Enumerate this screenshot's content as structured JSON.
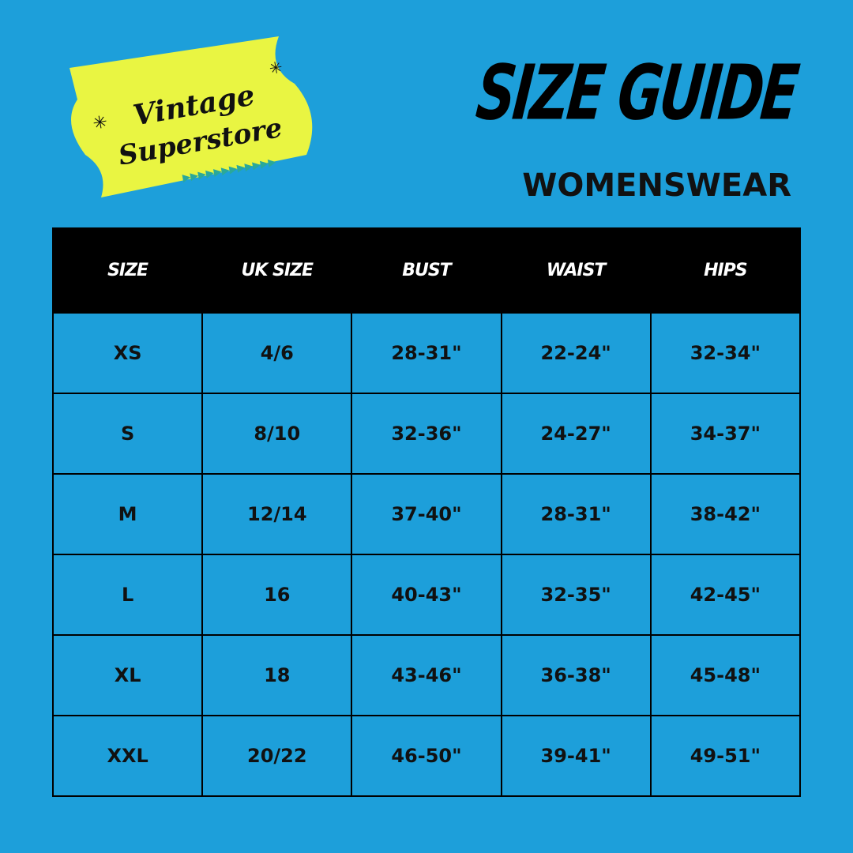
{
  "brand": {
    "logo_text": "Vintage Superstore",
    "colors": {
      "background": "#1d9fda",
      "logo_yellow": "#e9f542",
      "logo_triangles": "#2aa89a"
    }
  },
  "header": {
    "title": "SIZE GUIDE",
    "subtitle": "WOMENSWEAR"
  },
  "table": {
    "columns": [
      "SIZE",
      "UK SIZE",
      "BUST",
      "WAIST",
      "HIPS"
    ],
    "rows": [
      [
        "XS",
        "4/6",
        "28-31\"",
        "22-24\"",
        "32-34\""
      ],
      [
        "S",
        "8/10",
        "32-36\"",
        "24-27\"",
        "34-37\""
      ],
      [
        "M",
        "12/14",
        "37-40\"",
        "28-31\"",
        "38-42\""
      ],
      [
        "L",
        "16",
        "40-43\"",
        "32-35\"",
        "42-45\""
      ],
      [
        "XL",
        "18",
        "43-46\"",
        "36-38\"",
        "45-48\""
      ],
      [
        "XXL",
        "20/22",
        "46-50\"",
        "39-41\"",
        "49-51\""
      ]
    ]
  }
}
